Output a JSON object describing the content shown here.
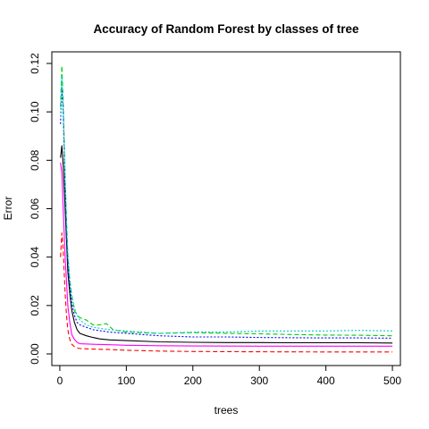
{
  "chart_data": {
    "type": "line",
    "title": "Accuracy of Random Forest by classes of tree",
    "xlabel": "trees",
    "ylabel": "Error",
    "xlim": [
      -12,
      512
    ],
    "ylim": [
      -0.0048,
      0.1248
    ],
    "xticks": [
      0,
      100,
      200,
      300,
      400,
      500
    ],
    "yticks": [
      0.0,
      0.02,
      0.04,
      0.06,
      0.08,
      0.1,
      0.12
    ],
    "ytick_labels": [
      "0.00",
      "0.02",
      "0.04",
      "0.06",
      "0.08",
      "0.10",
      "0.12"
    ],
    "grid": false,
    "legend": "none",
    "series": [
      {
        "color": "#000000",
        "dash": "solid",
        "points": [
          [
            1,
            0.081
          ],
          [
            3,
            0.086
          ],
          [
            5,
            0.078
          ],
          [
            8,
            0.06
          ],
          [
            10,
            0.047
          ],
          [
            12,
            0.034
          ],
          [
            15,
            0.025
          ],
          [
            18,
            0.018
          ],
          [
            22,
            0.013
          ],
          [
            26,
            0.01
          ],
          [
            30,
            0.0085
          ],
          [
            40,
            0.0075
          ],
          [
            50,
            0.0068
          ],
          [
            60,
            0.0062
          ],
          [
            75,
            0.0058
          ],
          [
            100,
            0.0055
          ],
          [
            150,
            0.005
          ],
          [
            200,
            0.0048
          ],
          [
            250,
            0.0047
          ],
          [
            300,
            0.0047
          ],
          [
            350,
            0.0046
          ],
          [
            400,
            0.0046
          ],
          [
            450,
            0.0046
          ],
          [
            500,
            0.0045
          ]
        ]
      },
      {
        "color": "#ff0000",
        "dash": "dashed",
        "points": [
          [
            1,
            0.04
          ],
          [
            3,
            0.05
          ],
          [
            5,
            0.043
          ],
          [
            8,
            0.025
          ],
          [
            10,
            0.016
          ],
          [
            12,
            0.01
          ],
          [
            15,
            0.006
          ],
          [
            18,
            0.004
          ],
          [
            22,
            0.003
          ],
          [
            26,
            0.0025
          ],
          [
            30,
            0.0022
          ],
          [
            50,
            0.002
          ],
          [
            75,
            0.0018
          ],
          [
            100,
            0.0015
          ],
          [
            150,
            0.0012
          ],
          [
            200,
            0.001
          ],
          [
            300,
            0.0009
          ],
          [
            400,
            0.0008
          ],
          [
            500,
            0.0008
          ]
        ]
      },
      {
        "color": "#00cd00",
        "dash": "dashed",
        "points": [
          [
            1,
            0.102
          ],
          [
            3,
            0.119
          ],
          [
            5,
            0.104
          ],
          [
            8,
            0.072
          ],
          [
            10,
            0.055
          ],
          [
            12,
            0.04
          ],
          [
            15,
            0.03
          ],
          [
            18,
            0.024
          ],
          [
            22,
            0.018
          ],
          [
            26,
            0.016
          ],
          [
            30,
            0.015
          ],
          [
            40,
            0.014
          ],
          [
            50,
            0.012
          ],
          [
            60,
            0.012
          ],
          [
            70,
            0.0125
          ],
          [
            80,
            0.01
          ],
          [
            100,
            0.009
          ],
          [
            150,
            0.0085
          ],
          [
            200,
            0.0088
          ],
          [
            250,
            0.0085
          ],
          [
            300,
            0.0083
          ],
          [
            350,
            0.008
          ],
          [
            400,
            0.0078
          ],
          [
            450,
            0.0077
          ],
          [
            500,
            0.0075
          ]
        ]
      },
      {
        "color": "#0000ff",
        "dash": "dotted",
        "points": [
          [
            1,
            0.095
          ],
          [
            3,
            0.11
          ],
          [
            5,
            0.1
          ],
          [
            8,
            0.07
          ],
          [
            10,
            0.05
          ],
          [
            12,
            0.038
          ],
          [
            15,
            0.028
          ],
          [
            18,
            0.021
          ],
          [
            22,
            0.016
          ],
          [
            26,
            0.013
          ],
          [
            30,
            0.012
          ],
          [
            40,
            0.011
          ],
          [
            50,
            0.01
          ],
          [
            75,
            0.009
          ],
          [
            100,
            0.0085
          ],
          [
            150,
            0.0075
          ],
          [
            200,
            0.007
          ],
          [
            250,
            0.007
          ],
          [
            300,
            0.0068
          ],
          [
            350,
            0.0067
          ],
          [
            400,
            0.0066
          ],
          [
            450,
            0.0066
          ],
          [
            500,
            0.0065
          ]
        ]
      },
      {
        "color": "#00cdcd",
        "dash": "dotted",
        "points": [
          [
            1,
            0.098
          ],
          [
            3,
            0.115
          ],
          [
            5,
            0.102
          ],
          [
            8,
            0.073
          ],
          [
            10,
            0.055
          ],
          [
            12,
            0.042
          ],
          [
            15,
            0.031
          ],
          [
            18,
            0.024
          ],
          [
            22,
            0.019
          ],
          [
            26,
            0.016
          ],
          [
            30,
            0.014
          ],
          [
            40,
            0.012
          ],
          [
            50,
            0.011
          ],
          [
            75,
            0.01
          ],
          [
            100,
            0.0095
          ],
          [
            150,
            0.0085
          ],
          [
            200,
            0.009
          ],
          [
            250,
            0.009
          ],
          [
            300,
            0.0095
          ],
          [
            350,
            0.0095
          ],
          [
            400,
            0.0095
          ],
          [
            450,
            0.0097
          ],
          [
            500,
            0.0095
          ]
        ]
      },
      {
        "color": "#ff00ff",
        "dash": "solid",
        "points": [
          [
            1,
            0.079
          ],
          [
            3,
            0.075
          ],
          [
            5,
            0.06
          ],
          [
            8,
            0.04
          ],
          [
            10,
            0.03
          ],
          [
            12,
            0.02
          ],
          [
            15,
            0.013
          ],
          [
            18,
            0.008
          ],
          [
            22,
            0.006
          ],
          [
            26,
            0.0048
          ],
          [
            30,
            0.0042
          ],
          [
            50,
            0.004
          ],
          [
            75,
            0.0038
          ],
          [
            100,
            0.0036
          ],
          [
            150,
            0.0034
          ],
          [
            200,
            0.0033
          ],
          [
            300,
            0.0032
          ],
          [
            400,
            0.0032
          ],
          [
            500,
            0.0032
          ]
        ]
      }
    ]
  }
}
